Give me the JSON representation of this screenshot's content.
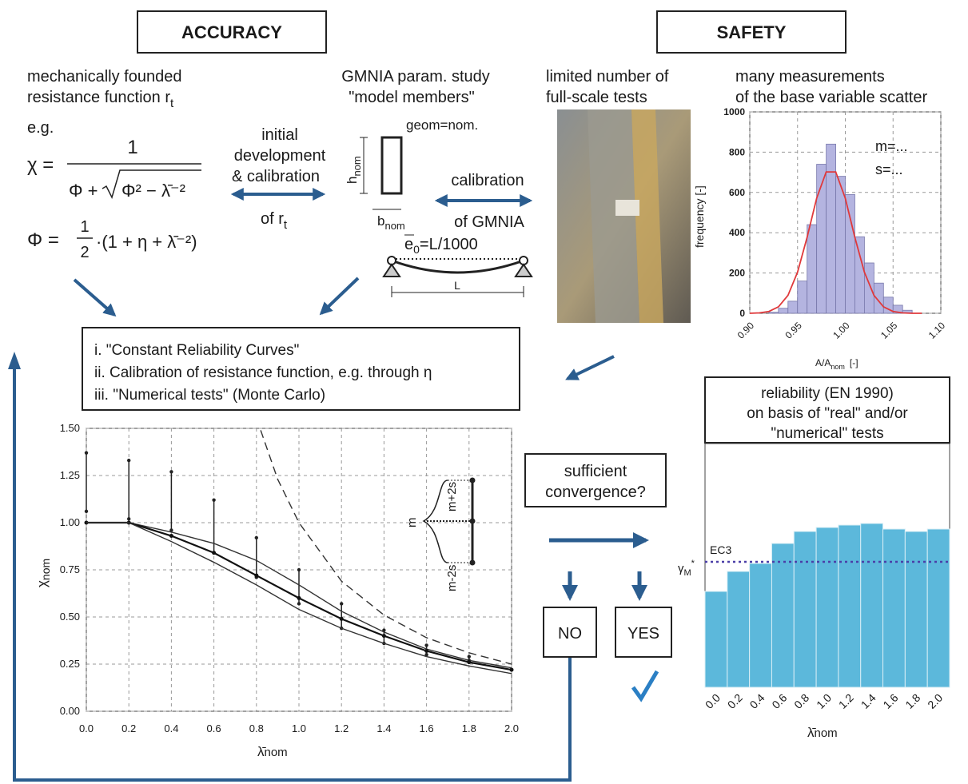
{
  "headers": {
    "accuracy": "ACCURACY",
    "safety": "SAFETY"
  },
  "accuracy": {
    "resistance": {
      "line1": "mechanically founded",
      "line2": "resistance function r",
      "sub": "t"
    },
    "eg": "e.g.",
    "formula": {
      "chi": "χ =",
      "numerator": "1",
      "denominator_left": "Φ +",
      "denominator_root": "Φ² − λ̄⁻²",
      "phi": "Φ =",
      "half_num": "1",
      "half_den": "2",
      "bracket": "·(1 + η + λ̄⁻²)"
    },
    "initial": {
      "lines": [
        "initial",
        "development",
        "& calibration"
      ],
      "of": "of r",
      "sub": "t"
    },
    "gmnia": {
      "lines": [
        "GMNIA param. study",
        "\"model members\""
      ],
      "geom": "geom=nom.",
      "h": "h",
      "h_sub": "nom",
      "b": "b",
      "b_sub": "nom",
      "calibration": "calibration",
      "of": "of GMNIA",
      "e0": "e",
      "e0_sub": "0",
      "e0_rest": "=L/1000",
      "span": "L"
    }
  },
  "safety": {
    "tests": [
      "limited number of",
      "full-scale tests"
    ],
    "measurements": [
      "many measurements",
      "of the base variable scatter"
    ],
    "convergence": [
      "sufficient",
      "convergence?"
    ],
    "no": "NO",
    "yes": "YES"
  },
  "steps": [
    "i. \"Constant Reliability Curves\"",
    "ii. Calibration of resistance function, e.g. through η",
    "iii. \"Numerical tests\" (Monte Carlo)"
  ],
  "chart_data": [
    {
      "type": "line",
      "xlabel": "λ̄",
      "xlabel_sub": "nom",
      "ylabel": "χ",
      "ylabel_sub": "nom",
      "x": [
        0,
        0.2,
        0.4,
        0.6,
        0.8,
        1.0,
        1.2,
        1.4,
        1.6,
        1.8,
        2.0
      ],
      "series": [
        {
          "values": [
            1,
            1,
            0.95,
            0.89,
            0.8,
            0.67,
            0.53,
            0.42,
            0.33,
            0.27,
            0.23
          ],
          "color": "#333333"
        },
        {
          "values": [
            1,
            1,
            0.93,
            0.84,
            0.72,
            0.6,
            0.49,
            0.4,
            0.32,
            0.26,
            0.22
          ],
          "color": "#111111",
          "markers": true
        },
        {
          "values": [
            1,
            1,
            0.9,
            0.79,
            0.67,
            0.54,
            0.44,
            0.36,
            0.29,
            0.24,
            0.2
          ],
          "color": "#333333"
        },
        {
          "x": [
            0.82,
            0.9,
            1.0,
            1.2,
            1.4,
            1.6,
            1.8,
            2.0
          ],
          "values": [
            1.49,
            1.23,
            1.0,
            0.69,
            0.51,
            0.39,
            0.31,
            0.25
          ],
          "color": "#333333",
          "dashed": true
        }
      ],
      "error_bars": {
        "x": [
          0,
          0.2,
          0.4,
          0.6,
          0.8,
          1.0,
          1.2,
          1.4,
          1.6,
          1.8
        ],
        "low": [
          1.06,
          1.02,
          0.96,
          0.84,
          0.71,
          0.57,
          0.44,
          0.36,
          0.3,
          0.27
        ],
        "high": [
          1.37,
          1.33,
          1.27,
          1.12,
          0.92,
          0.75,
          0.57,
          0.43,
          0.35,
          0.29
        ]
      },
      "inset": {
        "upper": "m+2s",
        "mid": "m",
        "lower": "m-2s"
      },
      "xlim": [
        0,
        2
      ],
      "ylim": [
        0,
        1.5
      ],
      "xticks": [
        {
          "value": 0,
          "label": "0.0"
        },
        {
          "value": 0.2,
          "label": "0.2"
        },
        {
          "value": 0.4,
          "label": "0.4"
        },
        {
          "value": 0.6,
          "label": "0.6"
        },
        {
          "value": 0.8,
          "label": "0.8"
        },
        {
          "value": 1,
          "label": "1.0"
        },
        {
          "value": 1.2,
          "label": "1.2"
        },
        {
          "value": 1.4,
          "label": "1.4"
        },
        {
          "value": 1.6,
          "label": "1.6"
        },
        {
          "value": 1.8,
          "label": "1.8"
        },
        {
          "value": 2,
          "label": "2.0"
        }
      ],
      "yticks": [
        {
          "value": 0,
          "label": "0.00"
        },
        {
          "value": 0.25,
          "label": "0.25"
        },
        {
          "value": 0.5,
          "label": "0.50"
        },
        {
          "value": 0.75,
          "label": "0.75"
        },
        {
          "value": 1,
          "label": "1.00"
        },
        {
          "value": 1.25,
          "label": "1.25"
        },
        {
          "value": 1.5,
          "label": "1.50"
        }
      ],
      "grid": true
    },
    {
      "type": "histogram",
      "xlabel": "A/A",
      "xlabel_sub": "nom",
      "xlabel_unit": "[-]",
      "ylabel": "frequency [-]",
      "bins": [
        0.92,
        0.93,
        0.94,
        0.95,
        0.96,
        0.97,
        0.98,
        0.99,
        1.0,
        1.01,
        1.02,
        1.03,
        1.04,
        1.05,
        1.06,
        1.07
      ],
      "counts": [
        5,
        25,
        60,
        160,
        440,
        740,
        840,
        680,
        590,
        380,
        250,
        150,
        80,
        40,
        15
      ],
      "color": "#b4b4e0",
      "fit": {
        "x": [
          0.9,
          0.91,
          0.92,
          0.93,
          0.94,
          0.95,
          0.96,
          0.97,
          0.98,
          0.99,
          1.0,
          1.01,
          1.02,
          1.03,
          1.04,
          1.05,
          1.06,
          1.07,
          1.08
        ],
        "values": [
          0,
          2,
          9,
          32,
          89,
          204,
          377,
          571,
          702,
          702,
          571,
          377,
          204,
          89,
          32,
          9,
          2,
          0,
          0
        ],
        "color": "#e0393b"
      },
      "annotations": [
        "m=...",
        "s=..."
      ],
      "xlim": [
        0.9,
        1.1
      ],
      "xticks": [
        {
          "value": 0.9,
          "label": "0.90"
        },
        {
          "value": 0.95,
          "label": "0.95"
        },
        {
          "value": 1,
          "label": "1.00"
        },
        {
          "value": 1.05,
          "label": "1.05"
        },
        {
          "value": 1.1,
          "label": "1.10"
        }
      ],
      "ylim": [
        0,
        1000
      ],
      "yticks": [
        0,
        200,
        400,
        600,
        800,
        1000
      ],
      "grid": true
    },
    {
      "type": "bar",
      "title": [
        "reliability (EN 1990)",
        "on basis of \"real\" and/or",
        "\"numerical\" tests"
      ],
      "categories": [
        "0.0",
        "0.2",
        "0.4",
        "0.6",
        "0.8",
        "1.0",
        "1.2",
        "1.4",
        "1.6",
        "1.8",
        "2.0"
      ],
      "values": [
        120,
        145,
        155,
        180,
        195,
        200,
        203,
        205,
        198,
        195,
        198
      ],
      "color": "#5cb8db",
      "ylim": [
        0,
        305
      ],
      "reference": {
        "value": 157,
        "label": "EC3",
        "color": "#4b3fa8"
      },
      "ylabel": "γ",
      "ylabel_sub": "M",
      "ylabel_sup": "*",
      "xlabel": "λ̄",
      "xlabel_sub": "nom"
    }
  ]
}
